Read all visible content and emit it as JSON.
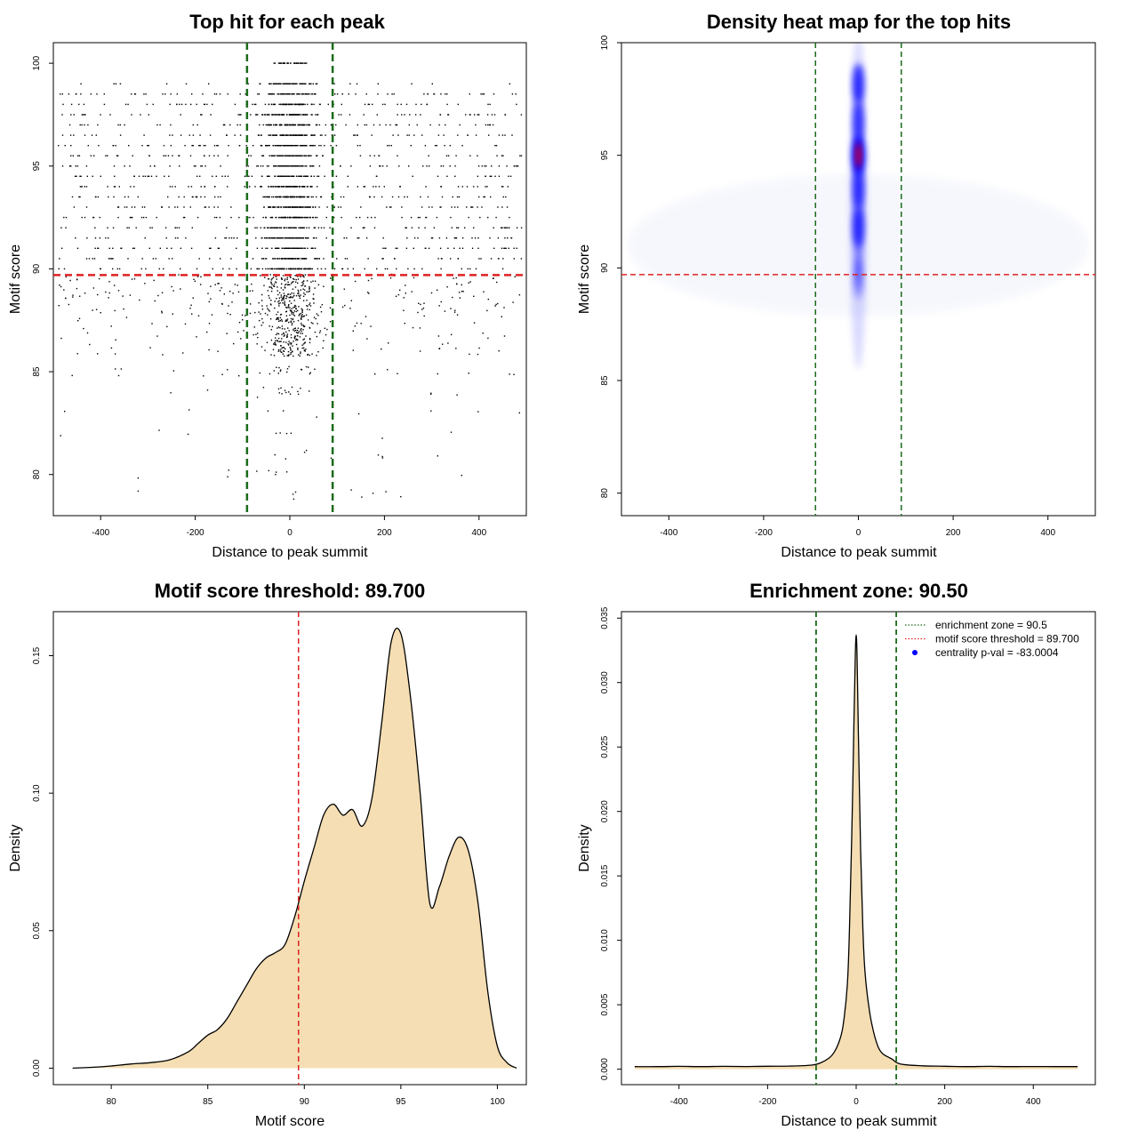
{
  "colors": {
    "threshold": "#dd2222",
    "zone": "#1a6b1a",
    "fill": "#f5deb3",
    "point": "#000000",
    "heat_low": "#ffffff",
    "heat_mid": "#0000ff",
    "heat_high": "#ff0000",
    "pval_dot": "#0000ff"
  },
  "chart_data": [
    {
      "type": "scatter",
      "title": "Top hit for each peak",
      "xlabel": "Distance to peak summit",
      "ylabel": "Motif score",
      "xlim": [
        -500,
        500
      ],
      "ylim": [
        78,
        101
      ],
      "xticks": [
        -400,
        -200,
        0,
        200,
        400
      ],
      "yticks": [
        80,
        85,
        90,
        95,
        100
      ],
      "zone": [
        -90.5,
        90.5
      ],
      "threshold": 89.7,
      "points_note": "",
      "score_levels": [
        79,
        80,
        81,
        82,
        83,
        84,
        85,
        86,
        86.5,
        87,
        87.5,
        88,
        88.5,
        89,
        89.5,
        90,
        90.5,
        91,
        91.5,
        92,
        92.5,
        93,
        93.5,
        94,
        94.5,
        95,
        95.5,
        96,
        96.5,
        97,
        97.5,
        98,
        98.5,
        99,
        100
      ]
    },
    {
      "type": "heatmap",
      "title": "Density heat map for the top hits",
      "xlabel": "Distance to peak summit",
      "ylabel": "Motif score",
      "xlim": [
        -500,
        500
      ],
      "ylim": [
        79,
        100
      ],
      "xticks": [
        -400,
        -200,
        0,
        200,
        400
      ],
      "yticks": [
        80,
        85,
        90,
        95,
        100
      ],
      "zone": [
        -90.5,
        90.5
      ],
      "threshold": 89.7,
      "hotspots": [
        {
          "x": 0,
          "y": 98.2,
          "intensity": 0.75
        },
        {
          "x": 0,
          "y": 96.5,
          "intensity": 0.6
        },
        {
          "x": 0,
          "y": 95,
          "intensity": 1.0
        },
        {
          "x": 0,
          "y": 93.5,
          "intensity": 0.65
        },
        {
          "x": 0,
          "y": 91.8,
          "intensity": 0.7
        },
        {
          "x": 0,
          "y": 89.5,
          "intensity": 0.35
        }
      ]
    },
    {
      "type": "area",
      "title": "Motif score threshold: 89.700",
      "xlabel": "Motif score",
      "ylabel": "Density",
      "xlim": [
        77,
        101.5
      ],
      "ylim": [
        -0.006,
        0.166
      ],
      "xticks": [
        80,
        85,
        90,
        95,
        100
      ],
      "yticks": [
        0.0,
        0.05,
        0.1,
        0.15
      ],
      "ytick_labels": [
        "0.00",
        "0.05",
        "0.10",
        "0.15"
      ],
      "threshold": 89.7,
      "x": [
        78,
        79,
        80,
        81,
        82,
        83,
        84,
        84.5,
        85,
        85.5,
        86,
        86.5,
        87,
        87.5,
        88,
        88.5,
        89,
        89.5,
        90,
        90.5,
        91,
        91.5,
        92,
        92.5,
        93,
        93.5,
        94,
        94.5,
        95,
        95.5,
        96,
        96.5,
        97,
        97.5,
        98,
        98.5,
        99,
        99.5,
        100,
        100.5,
        101
      ],
      "y": [
        0.0,
        0.0003,
        0.0008,
        0.0015,
        0.002,
        0.003,
        0.006,
        0.009,
        0.012,
        0.014,
        0.018,
        0.024,
        0.03,
        0.036,
        0.04,
        0.042,
        0.045,
        0.055,
        0.068,
        0.08,
        0.092,
        0.096,
        0.092,
        0.094,
        0.088,
        0.098,
        0.125,
        0.155,
        0.158,
        0.135,
        0.1,
        0.06,
        0.066,
        0.077,
        0.084,
        0.079,
        0.06,
        0.028,
        0.008,
        0.002,
        0.0
      ]
    },
    {
      "type": "area",
      "title": "Enrichment zone: 90.50",
      "xlabel": "Distance to peak summit",
      "ylabel": "Density",
      "xlim": [
        -530,
        540
      ],
      "ylim": [
        -0.0012,
        0.0355
      ],
      "xticks": [
        -400,
        -200,
        0,
        200,
        400
      ],
      "yticks": [
        0.0,
        0.005,
        0.01,
        0.015,
        0.02,
        0.025,
        0.03,
        0.035
      ],
      "ytick_labels": [
        "0.000",
        "0.005",
        "0.010",
        "0.015",
        "0.020",
        "0.025",
        "0.030",
        "0.035"
      ],
      "zone": [
        -90.5,
        90.5
      ],
      "x": [
        -500,
        -450,
        -400,
        -350,
        -300,
        -250,
        -200,
        -150,
        -100,
        -80,
        -60,
        -50,
        -40,
        -30,
        -20,
        -15,
        -10,
        -5,
        -2,
        0,
        2,
        5,
        10,
        15,
        20,
        30,
        40,
        50,
        60,
        80,
        100,
        150,
        200,
        250,
        300,
        350,
        400,
        450,
        500
      ],
      "y": [
        0.0002,
        0.0002,
        0.00022,
        0.0002,
        0.00022,
        0.00021,
        0.00023,
        0.00024,
        0.00032,
        0.0005,
        0.0009,
        0.0013,
        0.002,
        0.0033,
        0.0065,
        0.011,
        0.018,
        0.027,
        0.032,
        0.0337,
        0.032,
        0.026,
        0.017,
        0.011,
        0.0075,
        0.0045,
        0.0028,
        0.0017,
        0.0012,
        0.0008,
        0.0004,
        0.00026,
        0.00023,
        0.0002,
        0.00022,
        0.0002,
        0.00021,
        0.0002,
        0.0002
      ],
      "legend": [
        {
          "label": "enrichment zone = 90.5",
          "style": "dotted",
          "color": "#1a6b1a"
        },
        {
          "label": "motif score threshold = 89.700",
          "style": "dotted",
          "color": "#dd2222"
        },
        {
          "label": "centrality p-val = -83.0004",
          "style": "dot",
          "color": "#0000ff"
        }
      ]
    }
  ]
}
